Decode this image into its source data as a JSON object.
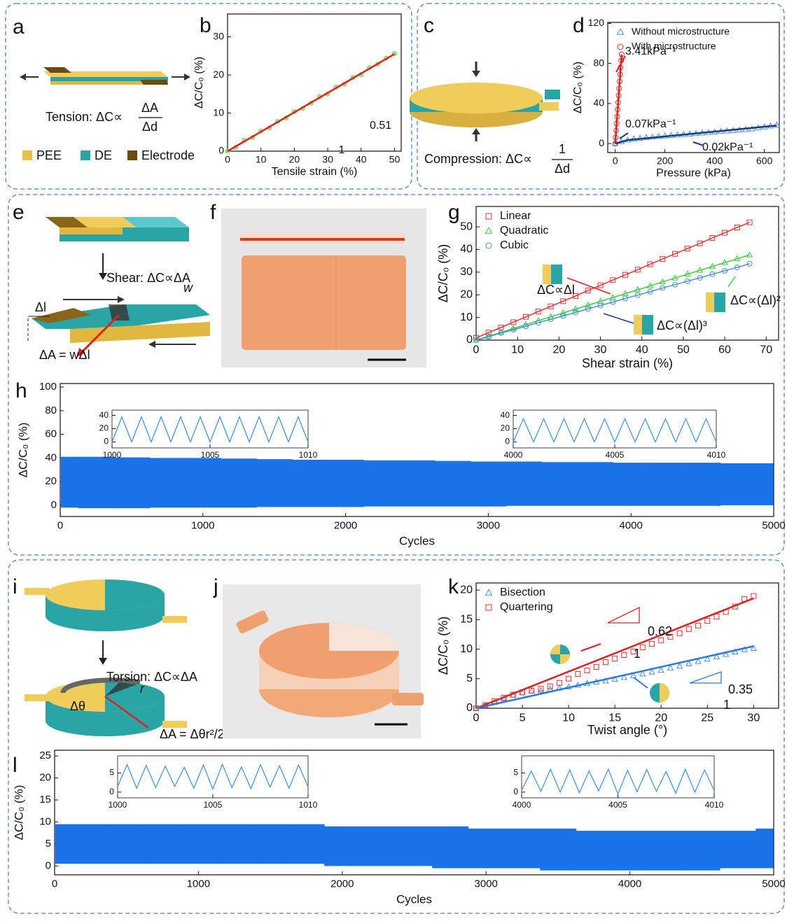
{
  "figure": {
    "panel_labels": [
      "a",
      "b",
      "c",
      "d",
      "e",
      "f",
      "g",
      "h",
      "i",
      "j",
      "k",
      "l"
    ],
    "tension": "Tension: ΔC∝",
    "tension_num": "ΔA",
    "tension_den": "Δd",
    "legend_pee": "PEE",
    "legend_de": "DE",
    "legend_electrode": "Electrode",
    "compression": "Compression: ΔC∝",
    "compression_num": "1",
    "compression_den": "Δd",
    "shear": "Shear: ΔC∝ΔA",
    "shear_dl": "Δl",
    "shear_w": "w",
    "shear_da": "ΔA = wΔl",
    "torsion": "Torsion: ΔC∝ΔA",
    "torsion_dtheta": "Δθ",
    "torsion_r": "r",
    "torsion_da": "ΔA = Δθr²/2"
  },
  "chart_data": [
    {
      "type": "scatter",
      "xlabel": "Tensile strain (%)",
      "ylabel": "ΔC/C₀ (%)",
      "xlim": [
        0,
        52
      ],
      "ylim": [
        0,
        36
      ],
      "xticks": [
        0,
        10,
        20,
        30,
        40,
        50
      ],
      "yticks": [
        0,
        10,
        20,
        30
      ],
      "annotations": [
        "0.51",
        "1"
      ],
      "series": [
        {
          "color": "#7ddc5a",
          "marker": "dot",
          "x": [
            0,
            2.5,
            5,
            7.5,
            10,
            12.5,
            15,
            17.5,
            20,
            22.5,
            25,
            27.5,
            30,
            32.5,
            35,
            37.5,
            40,
            42.5,
            45,
            47.5,
            50
          ],
          "values": [
            0,
            1.0,
            2.9,
            3.6,
            5.3,
            6.1,
            7.8,
            8.7,
            10.4,
            11.2,
            12.6,
            14.3,
            15.0,
            16.8,
            17.6,
            19.3,
            20.1,
            21.9,
            22.8,
            24.4,
            25.6
          ]
        },
        {
          "color": "#e02020",
          "marker": "none",
          "x": [
            0,
            50
          ],
          "values": [
            0,
            25.5
          ]
        }
      ]
    },
    {
      "type": "scatter",
      "xlabel": "Pressure (kPa)",
      "ylabel": "ΔC/C₀ (%)",
      "xlim": [
        -30,
        660
      ],
      "ylim": [
        -9,
        121
      ],
      "xticks": [
        0,
        200,
        400,
        600
      ],
      "yticks": [
        0,
        40,
        80,
        120
      ],
      "legend": "upper left",
      "annotations": [
        "3.41kPa⁻¹",
        "0.07kPa⁻¹",
        "0.02kPa⁻¹"
      ],
      "series": [
        {
          "name": "Without microstructure",
          "color": "#4a90d9",
          "marker": "triangle",
          "x": [
            0,
            25,
            50,
            75,
            100,
            125,
            150,
            175,
            200,
            225,
            250,
            275,
            300,
            325,
            350,
            375,
            400,
            425,
            450,
            475,
            500,
            525,
            550,
            575,
            600,
            625,
            650
          ],
          "values": [
            0,
            2,
            3.5,
            4.5,
            5.2,
            6,
            6.5,
            7,
            7.5,
            8,
            8.5,
            9,
            9.5,
            10,
            10.5,
            11,
            11.5,
            12,
            12.5,
            13,
            13.5,
            14,
            14.5,
            15.5,
            16.5,
            17.5,
            18.5
          ]
        },
        {
          "name": "With microstructure",
          "color": "#e83030",
          "marker": "circle",
          "x": [
            0,
            2,
            4,
            6,
            8,
            10,
            12,
            14,
            16,
            18,
            20,
            22,
            24,
            26
          ],
          "values": [
            0,
            6,
            13,
            20,
            27,
            34,
            41,
            48,
            55,
            62,
            69,
            76,
            83,
            89
          ]
        },
        {
          "color": "#e02020",
          "marker": "none",
          "x": [
            0,
            26
          ],
          "values": [
            0,
            89
          ]
        },
        {
          "color": "#1a3a8a",
          "marker": "none",
          "x": [
            0,
            50,
            650
          ],
          "values": [
            0,
            3.5,
            18
          ]
        }
      ]
    },
    {
      "type": "scatter",
      "xlabel": "Shear strain (%)",
      "ylabel": "ΔC/C₀ (%)",
      "xlim": [
        0,
        73
      ],
      "ylim": [
        0,
        59
      ],
      "xticks": [
        0,
        10,
        20,
        30,
        40,
        50,
        60,
        70
      ],
      "yticks": [
        0,
        10,
        20,
        30,
        40,
        50
      ],
      "legend": "upper left",
      "annotations": [
        "ΔC∝Δl",
        "ΔC∝(Δl)²",
        "ΔC∝(Δl)³"
      ],
      "series": [
        {
          "name": "Linear",
          "color": "#e83030",
          "marker": "square",
          "line": true,
          "x": [
            0,
            3,
            6,
            9,
            12,
            15,
            18,
            21,
            24,
            27,
            30,
            33,
            36,
            39,
            42,
            45,
            48,
            51,
            54,
            57,
            60,
            63,
            66
          ],
          "values": [
            1,
            3.3,
            5.6,
            7.9,
            10.3,
            12.6,
            14.9,
            17.2,
            19.5,
            21.9,
            24.2,
            26.5,
            28.8,
            31.1,
            33.5,
            35.8,
            38.1,
            40.4,
            42.7,
            45.1,
            47.4,
            49.7,
            52.0
          ]
        },
        {
          "name": "Quadratic",
          "color": "#3ccf3c",
          "marker": "triangle",
          "line": true,
          "x": [
            0,
            3,
            6,
            9,
            12,
            15,
            18,
            21,
            24,
            27,
            30,
            33,
            36,
            39,
            42,
            45,
            48,
            51,
            54,
            57,
            60,
            63,
            66
          ],
          "values": [
            0,
            1.7,
            3.4,
            5.1,
            6.8,
            8.6,
            10.3,
            12.0,
            13.7,
            15.4,
            17.1,
            18.8,
            20.5,
            22.2,
            23.9,
            25.7,
            27.4,
            29.1,
            30.8,
            32.5,
            34.2,
            35.9,
            37.6
          ]
        },
        {
          "name": "Cubic",
          "color": "#4a90d9",
          "marker": "circle",
          "line": true,
          "x": [
            0,
            3,
            6,
            9,
            12,
            15,
            18,
            21,
            24,
            27,
            30,
            33,
            36,
            39,
            42,
            45,
            48,
            51,
            54,
            57,
            60,
            63,
            66
          ],
          "values": [
            0,
            1.5,
            3.1,
            4.6,
            6.1,
            7.7,
            9.2,
            10.7,
            12.2,
            13.8,
            15.3,
            16.8,
            18.4,
            19.9,
            21.4,
            23.0,
            24.5,
            26.0,
            27.5,
            29.1,
            30.6,
            32.1,
            33.7
          ]
        }
      ]
    },
    {
      "type": "band",
      "xlabel": "Cycles",
      "ylabel": "ΔC/C₀ (%)",
      "xlim": [
        0,
        5000
      ],
      "ylim": [
        -9.5,
        103
      ],
      "xticks": [
        0,
        1000,
        2000,
        3000,
        4000,
        5000
      ],
      "yticks": [
        0,
        20,
        40,
        60,
        80,
        100
      ],
      "x": [
        0,
        250,
        500,
        750,
        1000,
        1250,
        1500,
        1750,
        2000,
        2250,
        2500,
        2750,
        3000,
        3250,
        3500,
        3750,
        4000,
        4250,
        4500,
        4750,
        5000
      ],
      "series": [
        {
          "color": "#1a72e8",
          "upper": [
            41,
            41,
            40.5,
            40,
            40,
            39.5,
            39,
            38.5,
            38.5,
            38,
            38,
            37.5,
            37,
            37,
            36.5,
            36.5,
            36,
            36,
            36,
            35.5,
            35.5
          ],
          "lower": [
            -2,
            -2.5,
            -2.5,
            -2,
            -2,
            -2,
            -1.5,
            -1.5,
            -1.5,
            -1,
            -1,
            -1,
            -1,
            -0.5,
            -0.5,
            -0.5,
            -0.5,
            -0.5,
            -0.5,
            0,
            0
          ]
        }
      ]
    },
    {
      "type": "line",
      "xlim": [
        1000,
        1010
      ],
      "ylim": [
        -9,
        48
      ],
      "xticks": [
        1000,
        1005,
        1010
      ],
      "yticks": [
        0,
        20,
        40
      ],
      "x": [
        1000,
        1000.5,
        1001,
        1001.5,
        1002,
        1002.5,
        1003,
        1003.5,
        1004,
        1004.5,
        1005,
        1005.5,
        1006,
        1006.5,
        1007,
        1007.5,
        1008,
        1008.5,
        1009,
        1009.5,
        1010
      ],
      "series": [
        {
          "color": "#3a8ee0",
          "values": [
            0,
            38,
            0,
            38,
            0,
            38,
            0,
            38,
            0,
            38,
            0,
            38,
            0,
            38,
            0,
            38,
            0,
            38,
            0,
            38,
            0
          ]
        }
      ]
    },
    {
      "type": "line",
      "xlim": [
        4000,
        4010
      ],
      "ylim": [
        -9,
        48
      ],
      "xticks": [
        4000,
        4005,
        4010
      ],
      "yticks": [
        0,
        20,
        40
      ],
      "x": [
        4000,
        4000.5,
        4001,
        4001.5,
        4002,
        4002.5,
        4003,
        4003.5,
        4004,
        4004.5,
        4005,
        4005.5,
        4006,
        4006.5,
        4007,
        4007.5,
        4008,
        4008.5,
        4009,
        4009.5,
        4010
      ],
      "series": [
        {
          "color": "#3a8ee0",
          "values": [
            0,
            35,
            0,
            35,
            0,
            35,
            0,
            35,
            0,
            35,
            0,
            35,
            0,
            35,
            0,
            35,
            0,
            35,
            0,
            35,
            0
          ]
        }
      ]
    },
    {
      "type": "scatter",
      "xlabel": "Twist angle (°)",
      "ylabel": "ΔC/C₀ (%)",
      "xlim": [
        0,
        32.7
      ],
      "ylim": [
        0,
        21.2
      ],
      "xticks": [
        0,
        5,
        10,
        15,
        20,
        25,
        30
      ],
      "yticks": [
        0,
        5,
        10,
        15,
        20
      ],
      "legend": "upper left",
      "annotations": [
        "0.62",
        "1",
        "0.35",
        "1"
      ],
      "series": [
        {
          "name": "Bisection",
          "color": "#4a90d9",
          "marker": "triangle",
          "x": [
            0,
            1,
            2,
            3,
            4,
            5,
            6,
            7,
            8,
            9,
            10,
            11,
            12,
            13,
            14,
            15,
            16,
            17,
            18,
            19,
            20,
            21,
            22,
            23,
            24,
            25,
            26,
            27,
            28,
            29,
            30
          ],
          "values": [
            0,
            0.5,
            1,
            1.6,
            2.2,
            2.6,
            2.9,
            3.0,
            3.2,
            3.4,
            3.6,
            3.9,
            4.2,
            4.4,
            4.6,
            4.9,
            5.2,
            5.5,
            5.8,
            6.1,
            6.4,
            6.8,
            7.1,
            7.5,
            7.9,
            8.3,
            8.7,
            9.1,
            9.5,
            9.9,
            10.1
          ]
        },
        {
          "name": "Quartering",
          "color": "#e83030",
          "marker": "square",
          "x": [
            0,
            1,
            2,
            3,
            4,
            5,
            6,
            7,
            8,
            9,
            10,
            11,
            12,
            13,
            14,
            15,
            16,
            17,
            18,
            19,
            20,
            21,
            22,
            23,
            24,
            25,
            26,
            27,
            28,
            29,
            30
          ],
          "values": [
            0,
            0.5,
            1.2,
            1.8,
            2.3,
            2.7,
            3.0,
            3.3,
            3.7,
            4.3,
            5.0,
            5.8,
            6.4,
            7.0,
            7.8,
            8.4,
            9.0,
            9.6,
            10.3,
            10.9,
            11.5,
            12.1,
            12.7,
            13.4,
            14.0,
            14.8,
            15.5,
            16.3,
            17.2,
            18.5,
            19.0
          ]
        },
        {
          "color": "#e02020",
          "marker": "none",
          "x": [
            0,
            30
          ],
          "values": [
            0,
            18.6
          ]
        },
        {
          "color": "#2a7ad8",
          "marker": "none",
          "x": [
            0,
            30
          ],
          "values": [
            0,
            10.5
          ]
        }
      ]
    },
    {
      "type": "band",
      "xlabel": "Cycles",
      "ylabel": "ΔC/C₀ (%)",
      "xlim": [
        0,
        5000
      ],
      "ylim": [
        -2,
        26.3
      ],
      "xticks": [
        0,
        1000,
        2000,
        3000,
        4000,
        5000
      ],
      "yticks": [
        0,
        5,
        10,
        15,
        20,
        25
      ],
      "x": [
        0,
        250,
        500,
        750,
        1000,
        1250,
        1500,
        1750,
        2000,
        2250,
        2500,
        2750,
        3000,
        3250,
        3500,
        3750,
        4000,
        4250,
        4500,
        4750,
        5000
      ],
      "series": [
        {
          "color": "#1a72e8",
          "upper": [
            9.5,
            9.5,
            9.5,
            9.5,
            9.5,
            9.5,
            9.5,
            9.5,
            9,
            9,
            9,
            9,
            8.5,
            8.5,
            8.5,
            8,
            8,
            8,
            8,
            8,
            8.5
          ],
          "lower": [
            0.5,
            0.5,
            0.5,
            0.5,
            0.5,
            0.5,
            0.5,
            0.5,
            0,
            0,
            0,
            -0.5,
            -0.5,
            -0.5,
            -1,
            -1,
            -1,
            -1,
            -1,
            -0.5,
            -0.5
          ]
        }
      ]
    },
    {
      "type": "line",
      "xlim": [
        1000,
        1010
      ],
      "ylim": [
        -1.5,
        9.5
      ],
      "xticks": [
        1000,
        1005,
        1010
      ],
      "yticks": [
        0,
        5
      ],
      "x": [
        1000,
        1000.5,
        1001,
        1001.5,
        1002,
        1002.5,
        1003,
        1003.5,
        1004,
        1004.5,
        1005,
        1005.5,
        1006,
        1006.5,
        1007,
        1007.5,
        1008,
        1008.5,
        1009,
        1009.5,
        1010
      ],
      "series": [
        {
          "color": "#3a8ee0",
          "values": [
            1.5,
            7.2,
            1,
            7,
            1.2,
            6.8,
            1.5,
            6.5,
            1,
            7.1,
            0.8,
            7.3,
            1.2,
            6.6,
            0.9,
            7.2,
            1.3,
            6.9,
            1,
            7.1,
            1.4
          ]
        }
      ]
    },
    {
      "type": "line",
      "xlim": [
        4000,
        4010
      ],
      "ylim": [
        -1.5,
        9.5
      ],
      "xticks": [
        4000,
        4005,
        4010
      ],
      "yticks": [
        0,
        5
      ],
      "x": [
        4000,
        4000.5,
        4001,
        4001.5,
        4002,
        4002.5,
        4003,
        4003.5,
        4004,
        4004.5,
        4005,
        4005.5,
        4006,
        4006.5,
        4007,
        4007.5,
        4008,
        4008.5,
        4009,
        4009.5,
        4010
      ],
      "series": [
        {
          "color": "#3a8ee0",
          "values": [
            0.5,
            5.5,
            0.2,
            6,
            0,
            5.8,
            -0.2,
            5.5,
            0.3,
            6,
            -0.5,
            5.7,
            0.1,
            5.9,
            0.2,
            5.4,
            -0.3,
            6,
            0,
            5.8,
            0.4
          ]
        }
      ]
    }
  ]
}
